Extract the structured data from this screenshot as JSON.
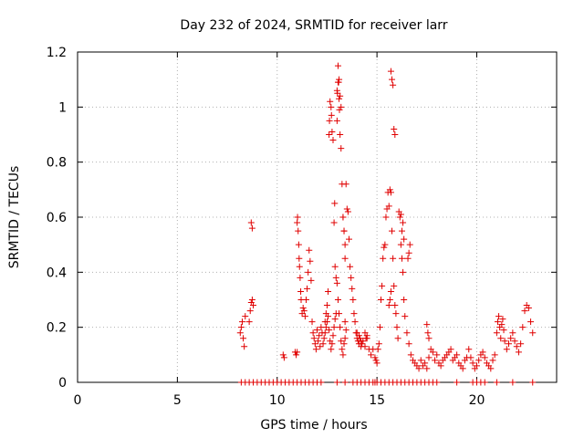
{
  "chart_data": {
    "type": "scatter",
    "title": "Day 232 of 2024, SRMTID for receiver larr",
    "xlabel": "GPS time / hours",
    "ylabel": "SRMTID / TECUs",
    "xlim": [
      0,
      24
    ],
    "ylim": [
      0,
      1.2
    ],
    "xticks": [
      0,
      5,
      10,
      15,
      20
    ],
    "xtick_labels": [
      "0",
      "5",
      "10",
      "15",
      "20"
    ],
    "yticks": [
      0,
      0.2,
      0.4,
      0.6,
      0.8,
      1.0,
      1.2
    ],
    "ytick_labels": [
      "0",
      "0.2",
      "0.4",
      "0.6",
      "0.8",
      "1",
      "1.2"
    ],
    "grid": true,
    "marker": "+",
    "color": "#e00000",
    "series": [
      {
        "name": "SRMTID",
        "x": [
          8.15,
          8.2,
          8.25,
          8.3,
          8.35,
          8.4,
          8.6,
          8.65,
          8.7,
          8.75,
          8.8,
          8.7,
          8.75,
          10.3,
          10.35,
          10.9,
          10.95,
          11.0,
          11.0,
          11.02,
          11.05,
          11.08,
          11.1,
          11.12,
          11.15,
          11.18,
          11.2,
          11.25,
          11.3,
          11.35,
          11.4,
          11.45,
          11.5,
          11.55,
          11.6,
          11.65,
          11.7,
          11.75,
          11.8,
          11.85,
          11.9,
          11.95,
          12.0,
          12.05,
          12.1,
          12.15,
          12.2,
          12.25,
          12.3,
          12.35,
          12.4,
          12.45,
          12.5,
          12.55,
          12.6,
          12.62,
          12.65,
          12.7,
          12.72,
          12.75,
          12.8,
          12.85,
          12.88,
          12.9,
          12.95,
          13.0,
          13.02,
          13.05,
          13.08,
          13.1,
          13.12,
          13.15,
          13.2,
          13.25,
          13.3,
          13.35,
          13.4,
          13.0,
          13.05,
          13.1,
          13.15,
          13.2,
          13.25,
          13.3,
          13.35,
          13.4,
          13.45,
          13.5,
          13.55,
          13.6,
          13.65,
          13.7,
          13.75,
          13.8,
          13.85,
          13.9,
          13.95,
          14.0,
          14.1,
          14.2,
          14.3,
          14.4,
          14.5,
          14.6,
          14.7,
          14.8,
          14.9,
          14.95,
          15.0,
          15.05,
          15.1,
          15.15,
          15.2,
          15.25,
          15.3,
          15.35,
          15.4,
          15.45,
          15.5,
          15.55,
          15.6,
          15.65,
          15.7,
          15.75,
          15.8,
          15.85,
          15.9,
          15.95,
          16.0,
          16.05,
          16.1,
          16.15,
          16.2,
          16.25,
          16.3,
          16.35,
          16.4,
          16.5,
          16.6,
          16.7,
          16.8,
          16.9,
          17.0,
          17.1,
          17.2,
          17.3,
          17.4,
          17.5,
          17.6,
          17.7,
          17.8,
          17.9,
          18.0,
          18.1,
          18.2,
          18.3,
          18.4,
          18.5,
          18.6,
          18.7,
          18.8,
          18.9,
          19.0,
          19.1,
          19.2,
          19.3,
          19.4,
          19.5,
          19.6,
          19.7,
          19.8,
          19.9,
          20.0,
          20.1,
          20.2,
          20.3,
          20.4,
          20.5,
          20.6,
          20.7,
          20.8,
          20.9,
          21.0,
          21.05,
          21.1,
          21.15,
          21.2,
          21.25,
          21.3,
          21.35,
          21.4,
          21.5,
          21.6,
          21.7,
          21.8,
          21.9,
          22.0,
          22.1,
          22.2,
          22.3,
          22.4,
          22.5,
          22.6,
          22.7,
          22.8,
          13.0,
          13.05,
          13.1,
          13.15,
          13.2,
          15.7,
          15.75,
          15.8,
          15.85,
          15.9,
          13.3,
          13.35,
          13.4,
          16.2,
          16.25,
          16.3,
          16.35,
          14.1,
          14.15,
          14.2,
          14.25,
          14.4,
          14.45,
          14.5,
          12.4,
          12.45,
          12.5,
          12.55,
          12.6,
          12.65,
          12.7,
          12.75,
          12.8,
          12.85,
          12.9,
          12.95,
          13.4,
          13.45,
          14.0,
          14.05,
          15.6,
          15.65,
          15.7,
          17.5,
          17.55,
          17.6,
          16.55,
          16.6,
          16.65,
          8.2,
          8.4,
          8.6,
          8.8,
          9.0,
          9.2,
          9.4,
          9.6,
          9.8,
          10.0,
          10.2,
          10.4,
          10.6,
          10.8,
          11.0,
          11.2,
          11.4,
          11.6,
          11.8,
          12.0,
          12.2,
          13.0,
          13.4,
          13.8,
          14.0,
          14.2,
          14.4,
          14.6,
          14.8,
          14.9,
          15.0,
          15.2,
          15.4,
          15.6,
          15.8,
          16.0,
          16.2,
          16.4,
          16.6,
          16.8,
          17.0,
          17.2,
          17.4,
          17.6,
          17.8,
          18.0,
          19.0,
          19.8,
          20.0,
          20.2,
          20.4,
          21.0,
          21.8,
          22.8
        ],
        "y": [
          0.18,
          0.2,
          0.22,
          0.16,
          0.13,
          0.24,
          0.22,
          0.26,
          0.29,
          0.3,
          0.28,
          0.58,
          0.56,
          0.1,
          0.09,
          0.11,
          0.1,
          0.11,
          0.58,
          0.6,
          0.55,
          0.5,
          0.45,
          0.42,
          0.38,
          0.33,
          0.3,
          0.25,
          0.27,
          0.26,
          0.24,
          0.3,
          0.34,
          0.4,
          0.48,
          0.44,
          0.37,
          0.22,
          0.18,
          0.16,
          0.14,
          0.12,
          0.19,
          0.15,
          0.17,
          0.13,
          0.2,
          0.18,
          0.14,
          0.16,
          0.22,
          0.25,
          0.28,
          0.33,
          0.9,
          0.95,
          1.02,
          1.0,
          0.97,
          0.91,
          0.88,
          0.58,
          0.65,
          0.42,
          0.38,
          0.95,
          1.05,
          1.15,
          1.09,
          1.03,
          0.99,
          0.9,
          0.85,
          0.72,
          0.6,
          0.55,
          0.45,
          0.36,
          0.3,
          0.25,
          0.2,
          0.15,
          0.12,
          0.1,
          0.14,
          0.16,
          0.72,
          0.63,
          0.62,
          0.52,
          0.42,
          0.38,
          0.34,
          0.3,
          0.25,
          0.22,
          0.18,
          0.16,
          0.14,
          0.13,
          0.15,
          0.18,
          0.16,
          0.12,
          0.1,
          0.12,
          0.09,
          0.08,
          0.07,
          0.12,
          0.14,
          0.2,
          0.3,
          0.35,
          0.45,
          0.49,
          0.5,
          0.6,
          0.63,
          0.69,
          0.64,
          0.7,
          0.69,
          0.55,
          0.45,
          0.35,
          0.28,
          0.25,
          0.2,
          0.16,
          0.62,
          0.6,
          0.5,
          0.45,
          0.4,
          0.3,
          0.24,
          0.18,
          0.14,
          0.1,
          0.08,
          0.07,
          0.06,
          0.05,
          0.08,
          0.06,
          0.07,
          0.05,
          0.09,
          0.12,
          0.11,
          0.08,
          0.1,
          0.07,
          0.06,
          0.08,
          0.09,
          0.1,
          0.11,
          0.12,
          0.08,
          0.09,
          0.1,
          0.07,
          0.06,
          0.05,
          0.08,
          0.09,
          0.12,
          0.09,
          0.07,
          0.05,
          0.06,
          0.08,
          0.1,
          0.11,
          0.09,
          0.07,
          0.06,
          0.05,
          0.08,
          0.1,
          0.18,
          0.22,
          0.24,
          0.2,
          0.16,
          0.21,
          0.23,
          0.19,
          0.15,
          0.12,
          0.14,
          0.16,
          0.18,
          0.15,
          0.13,
          0.11,
          0.14,
          0.2,
          0.26,
          0.28,
          0.27,
          0.22,
          0.18,
          1.06,
          1.09,
          1.1,
          1.04,
          1.0,
          1.13,
          1.1,
          1.08,
          0.92,
          0.9,
          0.6,
          0.55,
          0.5,
          0.61,
          0.55,
          0.58,
          0.52,
          0.17,
          0.16,
          0.15,
          0.14,
          0.13,
          0.16,
          0.17,
          0.18,
          0.2,
          0.22,
          0.24,
          0.19,
          0.15,
          0.12,
          0.14,
          0.17,
          0.2,
          0.23,
          0.25,
          0.22,
          0.19,
          0.18,
          0.15,
          0.28,
          0.3,
          0.33,
          0.21,
          0.18,
          0.16,
          0.45,
          0.47,
          0.5,
          0,
          0,
          0,
          0,
          0,
          0,
          0,
          0,
          0,
          0,
          0,
          0,
          0,
          0,
          0,
          0,
          0,
          0,
          0,
          0,
          0,
          0,
          0,
          0,
          0,
          0,
          0,
          0,
          0,
          0,
          0,
          0,
          0,
          0,
          0,
          0,
          0,
          0,
          0,
          0,
          0,
          0,
          0,
          0,
          0,
          0,
          0,
          0,
          0,
          0,
          0,
          0,
          0,
          0
        ]
      }
    ]
  }
}
